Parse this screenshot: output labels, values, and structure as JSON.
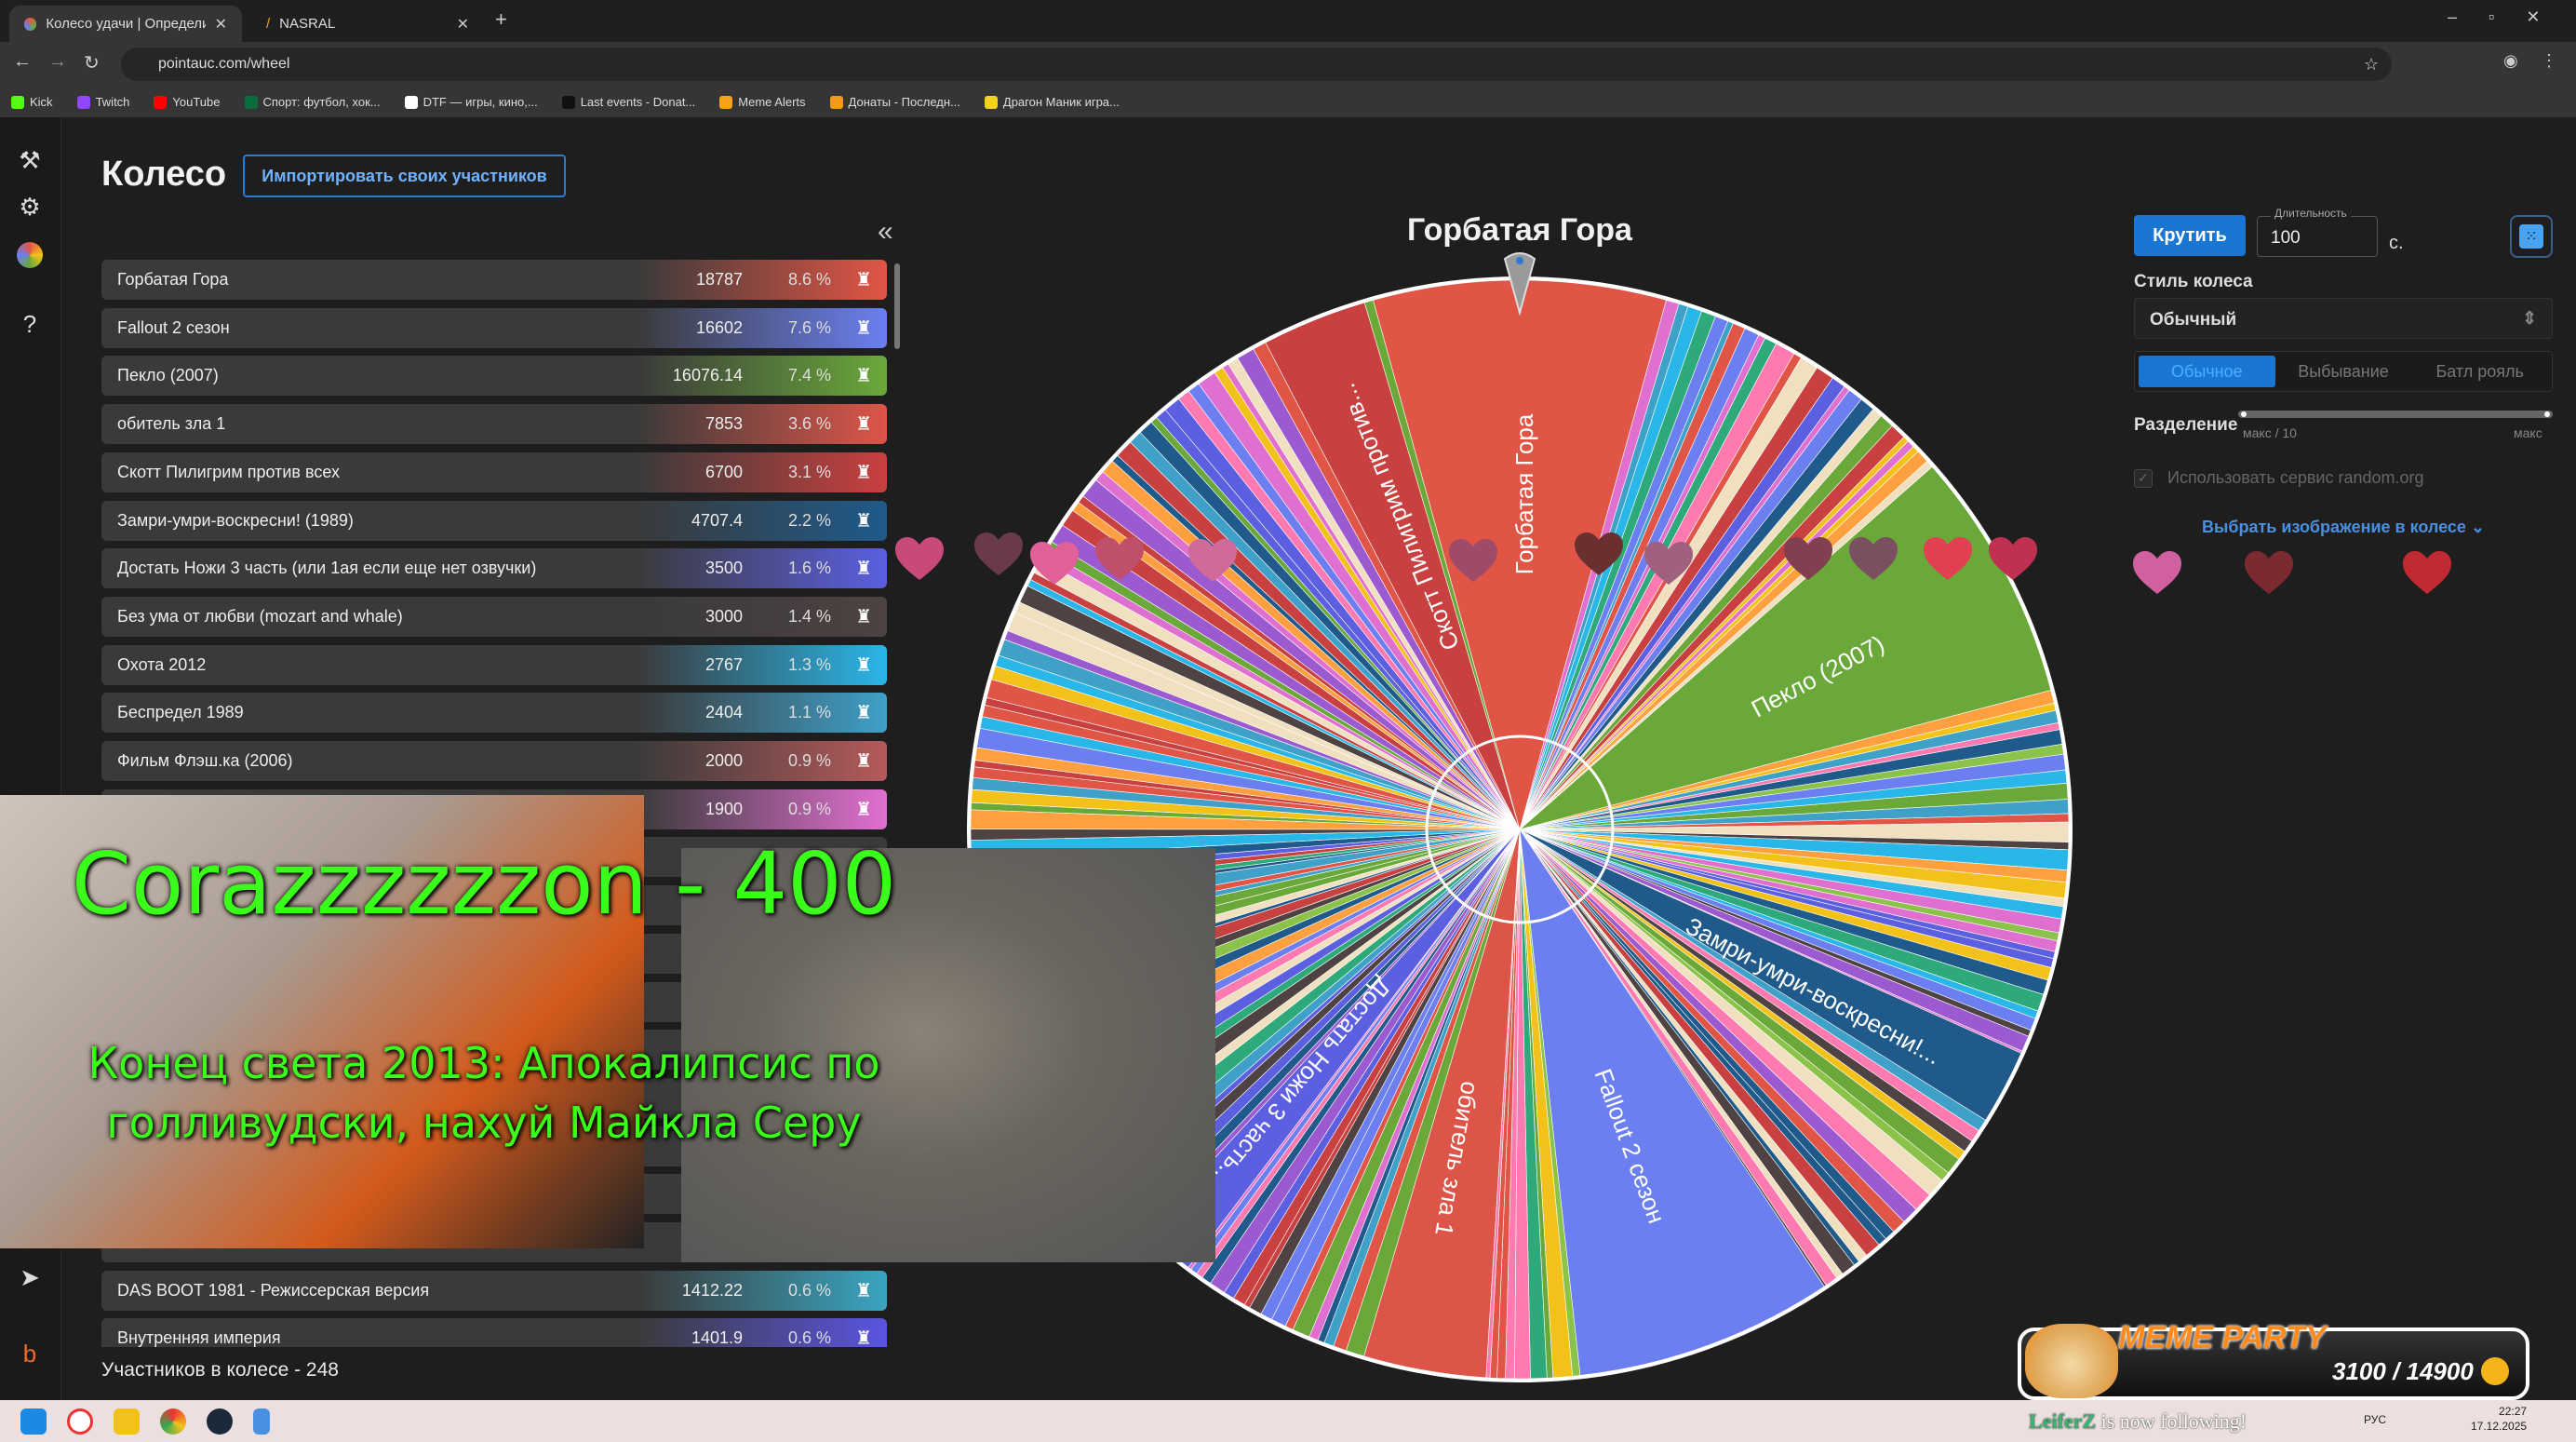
{
  "browser": {
    "tabs": [
      {
        "label": "Колесо удачи | Определите по",
        "active": true
      },
      {
        "label": "NASRAL",
        "active": false
      }
    ],
    "url": "pointauc.com/wheel",
    "bookmarks": [
      {
        "label": "Kick",
        "color": "#53fc18"
      },
      {
        "label": "Twitch",
        "color": "#9146ff"
      },
      {
        "label": "YouTube",
        "color": "#ff0000"
      },
      {
        "label": "Спорт: футбол, хок...",
        "color": "#0a6e3c"
      },
      {
        "label": "DTF — игры, кино,...",
        "color": "#ffffff"
      },
      {
        "label": "Last events - Donat...",
        "color": "#111111"
      },
      {
        "label": "Meme Alerts",
        "color": "#f7a21b"
      },
      {
        "label": "Донаты - Последн...",
        "color": "#f39a1c"
      },
      {
        "label": "Драгон Маник игра...",
        "color": "#f3d21a"
      }
    ]
  },
  "header": {
    "title": "Колесо",
    "import_label": "Импортировать своих участников",
    "collapse": "«"
  },
  "participants": [
    {
      "name": "Горбатая Гора",
      "amount": "18787",
      "percent": "8.6 %",
      "pct": 8.6,
      "color": "#e05545"
    },
    {
      "name": "Fallout 2 сезон",
      "amount": "16602",
      "percent": "7.6 %",
      "pct": 7.6,
      "color": "#6b7ff0"
    },
    {
      "name": "Пекло (2007)",
      "amount": "16076.14",
      "percent": "7.4 %",
      "pct": 7.4,
      "color": "#6aa83a"
    },
    {
      "name": "обитель зла 1",
      "amount": "7853",
      "percent": "3.6 %",
      "pct": 3.6,
      "color": "#dd5548"
    },
    {
      "name": "Скотт Пилигрим против всех",
      "amount": "6700",
      "percent": "3.1 %",
      "pct": 3.1,
      "color": "#c8403f"
    },
    {
      "name": "Замри-умри-воскресни! (1989)",
      "amount": "4707.4",
      "percent": "2.2 %",
      "pct": 2.2,
      "color": "#1f5a8a"
    },
    {
      "name": "Достать Ножи 3 часть (или 1ая если еще нет озвучки)",
      "amount": "3500",
      "percent": "1.6 %",
      "pct": 1.6,
      "color": "#5b5fe0"
    },
    {
      "name": "Без ума от любви (mozart and whale)",
      "amount": "3000",
      "percent": "1.4 %",
      "pct": 1.4,
      "color": "#4e4242"
    },
    {
      "name": "Охота 2012",
      "amount": "2767",
      "percent": "1.3 %",
      "pct": 1.3,
      "color": "#29b6e8"
    },
    {
      "name": "Беспредел 1989",
      "amount": "2404",
      "percent": "1.1 %",
      "pct": 1.1,
      "color": "#3fa0c8"
    },
    {
      "name": "Фильм Флэш.ка (2006)",
      "amount": "2000",
      "percent": "0.9 %",
      "pct": 0.9,
      "color": "#b55a5a"
    },
    {
      "name": "",
      "amount": "1900",
      "percent": "0.9 %",
      "pct": 0.9,
      "color": "#e070d0"
    },
    {
      "name": "DAS BOOT 1981 - Режиссерская версия",
      "amount": "1412.22",
      "percent": "0.6 %",
      "pct": 0.6,
      "color": "#3aa5c0"
    },
    {
      "name": "Внутренняя империя",
      "amount": "1401.9",
      "percent": "0.6 %",
      "pct": 0.6,
      "color": "#5a55e0"
    }
  ],
  "participants_count": "Участников в колесе - 248",
  "wheel": {
    "winner_title": "Горбатая Гора",
    "labels": [
      "Горбатая Гора",
      "Пекло (2007)",
      "Замри-умри-воскресни!...",
      "Fallout 2 сезон",
      "обитель зла 1",
      "Достать Ножи 3 часть...",
      "Скотт Пилигрим против..."
    ]
  },
  "controls": {
    "spin_label": "Крутить",
    "duration_label": "Длительность",
    "duration_value": "100",
    "seconds": "с.",
    "style_label": "Стиль колеса",
    "style_value": "Обычный",
    "modes": [
      {
        "label": "Обычное",
        "active": true
      },
      {
        "label": "Выбывание",
        "active": false
      },
      {
        "label": "Батл рояль",
        "active": false
      }
    ],
    "split_label": "Разделение",
    "split_min": "макс / 10",
    "split_max": "макс",
    "random_org_label": "Использовать сервис random.org",
    "random_org_checked": true,
    "image_link": "Выбрать изображение в колесе"
  },
  "stream_overlay": {
    "alert_title": "Corazzzzzzon - 400",
    "alert_message": "Конец света 2013: Апокалипсис по голливудски, нахуй Майкла Серу",
    "meme_party_title": "MEME PARTY",
    "meme_party_progress": "3100 / 14900",
    "meme_party_fraction": 0.208,
    "follow_user": "LeiferZ",
    "follow_text": "is now following!"
  },
  "taskbar": {
    "time": "22:27",
    "date": "17.12.2025",
    "lang": "РУС"
  }
}
